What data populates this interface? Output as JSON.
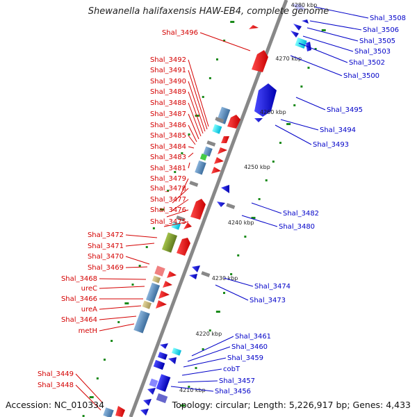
{
  "title": "Shewanella halifaxensis HAW-EB4, complete genome",
  "footer": {
    "accession": "Accession: NC_010334",
    "topology": "Topology: circular; Length: 5,226,917 bp; Genes: 4,433"
  },
  "scale_labels": [
    "4210 kbp",
    "4220 kbp",
    "4230 kbp",
    "4240 kbp",
    "4250 kbp",
    "4260 kbp",
    "4270 kbp",
    "4280 kbp"
  ],
  "left_genes": [
    "Shal_3496",
    "Shal_3492",
    "Shal_3491",
    "Shal_3490",
    "Shal_3489",
    "Shal_3488",
    "Shal_3487",
    "Shal_3486",
    "Shal_3485",
    "Shal_3484",
    "Shal_3483",
    "Shal_3481",
    "Shal_3479",
    "Shal_3478",
    "Shal_3477",
    "Shal_3476",
    "Shal_3475",
    "Shal_3472",
    "Shal_3471",
    "Shal_3470",
    "Shal_3469",
    "Shal_3468",
    "ureC",
    "Shal_3466",
    "ureA",
    "Shal_3464",
    "metH",
    "Shal_3449",
    "Shal_3448"
  ],
  "right_genes": [
    "Shal_3508",
    "Shal_3506",
    "Shal_3505",
    "Shal_3503",
    "Shal_3502",
    "Shal_3500",
    "Shal_3495",
    "Shal_3494",
    "Shal_3493",
    "Shal_3482",
    "Shal_3480",
    "Shal_3474",
    "Shal_3473",
    "Shal_3461",
    "Shal_3460",
    "Shal_3459",
    "cobT",
    "Shal_3457",
    "Shal_3456"
  ],
  "colors": {
    "forward_strand": "#ff0000",
    "reverse_strand": "#0000ff",
    "backbone": "#888888",
    "left_label": "#d40000",
    "right_label": "#0000c8",
    "tick_dots": "#1a8a1a"
  }
}
